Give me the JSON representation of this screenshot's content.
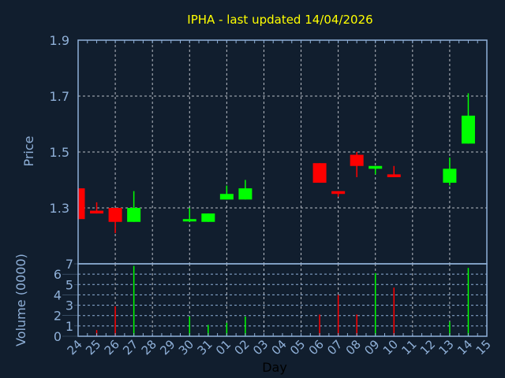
{
  "chart_data": [
    {
      "type": "candlestick",
      "title": "IPHA - last updated 14/04/2026",
      "ylabel": "Price",
      "xlabel": "",
      "ylim": [
        1.1,
        1.9
      ],
      "yticks": [
        "1.3",
        "1.5",
        "1.7",
        "1.9"
      ],
      "grid": true,
      "colors": {
        "up": "#00ff00",
        "down": "#ff0000"
      },
      "candles": [
        {
          "day": "24",
          "open": 1.37,
          "high": 1.37,
          "low": 1.26,
          "close": 1.26
        },
        {
          "day": "25",
          "open": 1.29,
          "high": 1.32,
          "low": 1.28,
          "close": 1.28
        },
        {
          "day": "26",
          "open": 1.3,
          "high": 1.3,
          "low": 1.21,
          "close": 1.25
        },
        {
          "day": "27",
          "open": 1.25,
          "high": 1.36,
          "low": 1.25,
          "close": 1.3
        },
        {
          "day": "30",
          "open": 1.26,
          "high": 1.3,
          "low": 1.25,
          "close": 1.26
        },
        {
          "day": "31",
          "open": 1.25,
          "high": 1.28,
          "low": 1.25,
          "close": 1.28
        },
        {
          "day": "01",
          "open": 1.33,
          "high": 1.38,
          "low": 1.33,
          "close": 1.35
        },
        {
          "day": "02",
          "open": 1.33,
          "high": 1.4,
          "low": 1.33,
          "close": 1.37
        },
        {
          "day": "06",
          "open": 1.46,
          "high": 1.46,
          "low": 1.39,
          "close": 1.39
        },
        {
          "day": "07",
          "open": 1.36,
          "high": 1.36,
          "low": 1.34,
          "close": 1.35
        },
        {
          "day": "08",
          "open": 1.49,
          "high": 1.5,
          "low": 1.41,
          "close": 1.45
        },
        {
          "day": "09",
          "open": 1.44,
          "high": 1.45,
          "low": 1.42,
          "close": 1.45
        },
        {
          "day": "10",
          "open": 1.42,
          "high": 1.45,
          "low": 1.41,
          "close": 1.41
        },
        {
          "day": "13",
          "open": 1.39,
          "high": 1.48,
          "low": 1.38,
          "close": 1.44
        },
        {
          "day": "14",
          "open": 1.53,
          "high": 1.71,
          "low": 1.53,
          "close": 1.63
        }
      ]
    },
    {
      "type": "bar",
      "ylabel": "Volume (0000)",
      "xlabel": "Day",
      "ylim": [
        0,
        7
      ],
      "yticks": [
        "0",
        "1",
        "2",
        "3",
        "4",
        "5",
        "6",
        "7"
      ],
      "grid": true,
      "categories": [
        "24",
        "25",
        "26",
        "27",
        "28",
        "29",
        "30",
        "31",
        "01",
        "02",
        "03",
        "04",
        "05",
        "06",
        "07",
        "08",
        "09",
        "10",
        "11",
        "12",
        "13",
        "14",
        "15"
      ],
      "bars": [
        {
          "day": "25",
          "value": 0.6,
          "direction": "down"
        },
        {
          "day": "26",
          "value": 2.9,
          "direction": "down"
        },
        {
          "day": "27",
          "value": 6.8,
          "direction": "up"
        },
        {
          "day": "30",
          "value": 1.9,
          "direction": "up"
        },
        {
          "day": "31",
          "value": 1.1,
          "direction": "up"
        },
        {
          "day": "01",
          "value": 1.3,
          "direction": "up"
        },
        {
          "day": "02",
          "value": 1.9,
          "direction": "up"
        },
        {
          "day": "06",
          "value": 2.1,
          "direction": "down"
        },
        {
          "day": "07",
          "value": 4.0,
          "direction": "down"
        },
        {
          "day": "08",
          "value": 2.1,
          "direction": "down"
        },
        {
          "day": "09",
          "value": 6.1,
          "direction": "up"
        },
        {
          "day": "10",
          "value": 4.7,
          "direction": "down"
        },
        {
          "day": "13",
          "value": 1.4,
          "direction": "up"
        },
        {
          "day": "14",
          "value": 6.6,
          "direction": "up"
        }
      ]
    }
  ]
}
